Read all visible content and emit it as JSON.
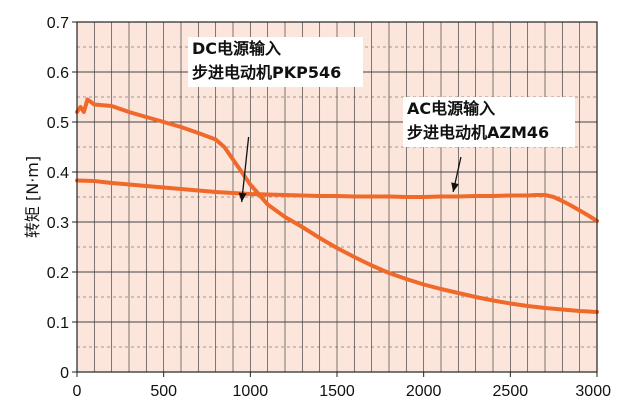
{
  "chart_data": {
    "type": "line",
    "title": "",
    "xlabel": "",
    "ylabel": "转矩 [N·m]",
    "xlim": [
      0,
      3000
    ],
    "ylim": [
      0,
      0.7
    ],
    "xticks": [
      0,
      500,
      1000,
      1500,
      2000,
      2500,
      3000
    ],
    "yticks": [
      0,
      0.1,
      0.2,
      0.3,
      0.4,
      0.5,
      0.6,
      0.7
    ],
    "grid": true,
    "background_color": "#fce6dc",
    "grid_color": "#444444",
    "series": [
      {
        "color": "#f0692a",
        "x": [
          0,
          20,
          40,
          60,
          80,
          100,
          200,
          300,
          400,
          500,
          600,
          700,
          800,
          850,
          900,
          950,
          1000,
          1050,
          1100,
          1200,
          1300,
          1400,
          1500,
          1600,
          1700,
          1800,
          1900,
          2000,
          2100,
          2200,
          2300,
          2400,
          2500,
          2600,
          2700,
          2800,
          2900,
          3000
        ],
        "y": [
          0.52,
          0.53,
          0.52,
          0.545,
          0.54,
          0.535,
          0.532,
          0.52,
          0.51,
          0.5,
          0.49,
          0.478,
          0.465,
          0.45,
          0.425,
          0.4,
          0.375,
          0.355,
          0.335,
          0.31,
          0.29,
          0.268,
          0.248,
          0.23,
          0.213,
          0.198,
          0.186,
          0.175,
          0.166,
          0.158,
          0.15,
          0.143,
          0.137,
          0.132,
          0.128,
          0.125,
          0.122,
          0.12
        ]
      },
      {
        "color": "#f0692a",
        "x": [
          0,
          100,
          200,
          300,
          400,
          500,
          600,
          700,
          800,
          900,
          1000,
          1100,
          1200,
          1300,
          1400,
          1500,
          1600,
          1700,
          1800,
          1900,
          2000,
          2100,
          2200,
          2300,
          2400,
          2500,
          2600,
          2650,
          2700,
          2750,
          2800,
          2850,
          2900,
          2950,
          3000
        ],
        "y": [
          0.383,
          0.382,
          0.378,
          0.375,
          0.372,
          0.369,
          0.366,
          0.363,
          0.36,
          0.358,
          0.356,
          0.355,
          0.354,
          0.353,
          0.352,
          0.352,
          0.351,
          0.351,
          0.351,
          0.35,
          0.35,
          0.351,
          0.351,
          0.352,
          0.352,
          0.353,
          0.353,
          0.354,
          0.354,
          0.35,
          0.342,
          0.333,
          0.323,
          0.313,
          0.302
        ]
      }
    ],
    "annotations": [
      {
        "lines": [
          "DC电源输入",
          "步进电动机PKP546"
        ],
        "x": 950,
        "y": 0.34,
        "pointer_from": [
          990,
          0.47
        ]
      },
      {
        "lines": [
          "AC电源输入",
          "步进电动机AZM46"
        ],
        "x": 2170,
        "y": 0.36,
        "pointer_from": [
          2215,
          0.43
        ]
      }
    ]
  }
}
